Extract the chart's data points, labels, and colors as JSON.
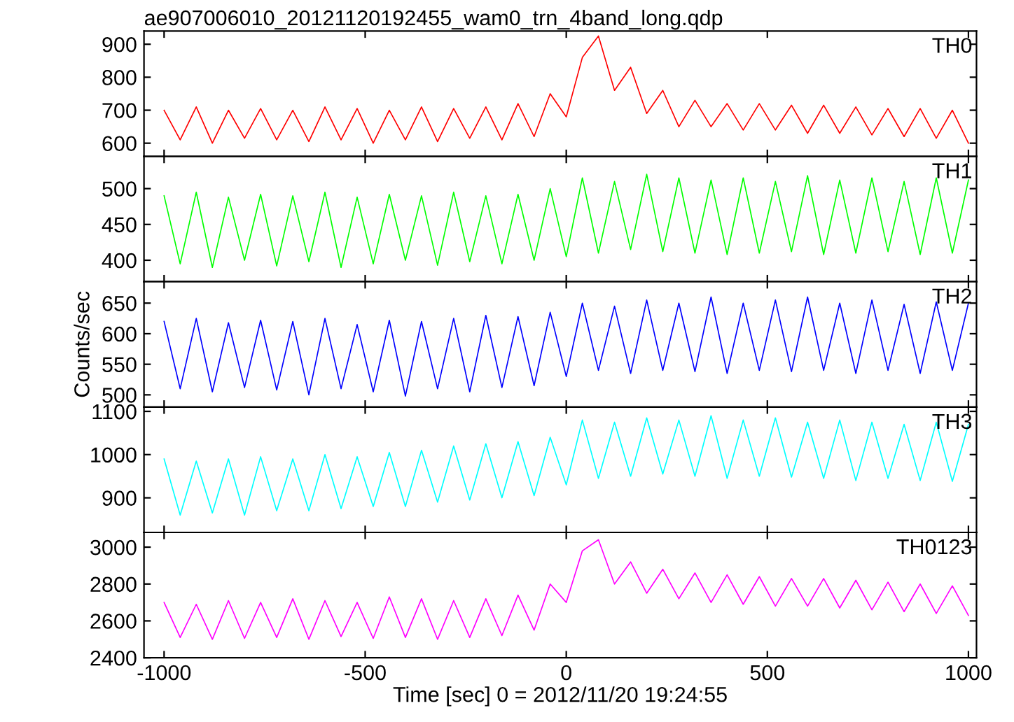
{
  "chart_data": [
    {
      "type": "line",
      "title": "ae907006010_20121120192455_wam0_trn_4band_long.qdp",
      "annotations": [
        "TH0"
      ],
      "tick_labels": "y",
      "xlim": [
        -1050,
        1020
      ],
      "xticks": [
        -1000,
        -500,
        0,
        500,
        1000
      ],
      "ylim": [
        560,
        940
      ],
      "yticks": [
        600,
        700,
        800,
        900
      ],
      "grid": false,
      "legend": false,
      "x": [
        -1000,
        -960,
        -920,
        -880,
        -840,
        -800,
        -760,
        -720,
        -680,
        -640,
        -600,
        -560,
        -520,
        -480,
        -440,
        -400,
        -360,
        -320,
        -280,
        -240,
        -200,
        -160,
        -120,
        -80,
        -40,
        0,
        40,
        80,
        120,
        160,
        200,
        240,
        280,
        320,
        360,
        400,
        440,
        480,
        520,
        560,
        600,
        640,
        680,
        720,
        760,
        800,
        840,
        880,
        920,
        960,
        1000
      ],
      "series": [
        {
          "color": "#ff0000",
          "values": [
            700,
            610,
            710,
            600,
            700,
            615,
            705,
            610,
            700,
            605,
            710,
            610,
            705,
            600,
            700,
            610,
            710,
            605,
            705,
            615,
            710,
            610,
            720,
            620,
            750,
            680,
            860,
            925,
            760,
            830,
            690,
            760,
            650,
            730,
            650,
            720,
            640,
            720,
            640,
            715,
            630,
            715,
            630,
            710,
            625,
            705,
            620,
            705,
            615,
            700,
            600
          ]
        }
      ]
    },
    {
      "type": "line",
      "annotations": [
        "TH1"
      ],
      "tick_labels": "y",
      "xlim": [
        -1050,
        1020
      ],
      "xticks": [
        -1000,
        -500,
        0,
        500,
        1000
      ],
      "ylim": [
        370,
        545
      ],
      "yticks": [
        400,
        450,
        500
      ],
      "grid": false,
      "legend": false,
      "x": [
        -1000,
        -960,
        -920,
        -880,
        -840,
        -800,
        -760,
        -720,
        -680,
        -640,
        -600,
        -560,
        -520,
        -480,
        -440,
        -400,
        -360,
        -320,
        -280,
        -240,
        -200,
        -160,
        -120,
        -80,
        -40,
        0,
        40,
        80,
        120,
        160,
        200,
        240,
        280,
        320,
        360,
        400,
        440,
        480,
        520,
        560,
        600,
        640,
        680,
        720,
        760,
        800,
        840,
        880,
        920,
        960,
        1000
      ],
      "series": [
        {
          "color": "#00ff00",
          "values": [
            490,
            395,
            495,
            390,
            488,
            400,
            492,
            392,
            490,
            398,
            495,
            390,
            488,
            395,
            492,
            400,
            490,
            393,
            495,
            398,
            490,
            395,
            492,
            400,
            500,
            405,
            515,
            410,
            510,
            415,
            520,
            412,
            515,
            410,
            512,
            408,
            515,
            410,
            510,
            412,
            518,
            408,
            512,
            410,
            515,
            412,
            510,
            408,
            515,
            410,
            512
          ]
        }
      ]
    },
    {
      "type": "line",
      "annotations": [
        "TH2"
      ],
      "ylabel": "Counts/sec",
      "tick_labels": "y",
      "xlim": [
        -1050,
        1020
      ],
      "xticks": [
        -1000,
        -500,
        0,
        500,
        1000
      ],
      "ylim": [
        480,
        685
      ],
      "yticks": [
        500,
        550,
        600,
        650
      ],
      "grid": false,
      "legend": false,
      "x": [
        -1000,
        -960,
        -920,
        -880,
        -840,
        -800,
        -760,
        -720,
        -680,
        -640,
        -600,
        -560,
        -520,
        -480,
        -440,
        -400,
        -360,
        -320,
        -280,
        -240,
        -200,
        -160,
        -120,
        -80,
        -40,
        0,
        40,
        80,
        120,
        160,
        200,
        240,
        280,
        320,
        360,
        400,
        440,
        480,
        520,
        560,
        600,
        640,
        680,
        720,
        760,
        800,
        840,
        880,
        920,
        960,
        1000
      ],
      "series": [
        {
          "color": "#0000ff",
          "values": [
            620,
            510,
            625,
            505,
            618,
            512,
            622,
            508,
            620,
            500,
            625,
            510,
            615,
            505,
            622,
            498,
            620,
            510,
            625,
            505,
            630,
            512,
            628,
            515,
            635,
            530,
            650,
            540,
            645,
            535,
            655,
            540,
            650,
            538,
            660,
            535,
            650,
            540,
            655,
            538,
            660,
            540,
            650,
            535,
            655,
            540,
            648,
            535,
            652,
            540,
            650
          ]
        }
      ]
    },
    {
      "type": "line",
      "annotations": [
        "TH3"
      ],
      "tick_labels": "y",
      "xlim": [
        -1050,
        1020
      ],
      "xticks": [
        -1000,
        -500,
        0,
        500,
        1000
      ],
      "ylim": [
        820,
        1110
      ],
      "yticks": [
        900,
        1000,
        1100
      ],
      "grid": false,
      "legend": false,
      "x": [
        -1000,
        -960,
        -920,
        -880,
        -840,
        -800,
        -760,
        -720,
        -680,
        -640,
        -600,
        -560,
        -520,
        -480,
        -440,
        -400,
        -360,
        -320,
        -280,
        -240,
        -200,
        -160,
        -120,
        -80,
        -40,
        0,
        40,
        80,
        120,
        160,
        200,
        240,
        280,
        320,
        360,
        400,
        440,
        480,
        520,
        560,
        600,
        640,
        680,
        720,
        760,
        800,
        840,
        880,
        920,
        960,
        1000
      ],
      "series": [
        {
          "color": "#00ffff",
          "values": [
            990,
            860,
            985,
            865,
            990,
            860,
            995,
            870,
            990,
            870,
            1000,
            875,
            995,
            880,
            1005,
            880,
            1010,
            890,
            1020,
            895,
            1025,
            900,
            1030,
            905,
            1040,
            930,
            1080,
            945,
            1075,
            950,
            1085,
            955,
            1080,
            950,
            1090,
            945,
            1080,
            950,
            1085,
            948,
            1075,
            945,
            1080,
            940,
            1075,
            945,
            1070,
            940,
            1075,
            938,
            1070
          ]
        }
      ]
    },
    {
      "type": "line",
      "annotations": [
        "TH0123"
      ],
      "xlabel": "Time [sec] 0 = 2012/11/20 19:24:55",
      "xlim": [
        -1050,
        1020
      ],
      "xticks": [
        -1000,
        -500,
        0,
        500,
        1000
      ],
      "ylim": [
        2400,
        3080
      ],
      "yticks": [
        2400,
        2600,
        2800,
        3000
      ],
      "grid": false,
      "legend": false,
      "x": [
        -1000,
        -960,
        -920,
        -880,
        -840,
        -800,
        -760,
        -720,
        -680,
        -640,
        -600,
        -560,
        -520,
        -480,
        -440,
        -400,
        -360,
        -320,
        -280,
        -240,
        -200,
        -160,
        -120,
        -80,
        -40,
        0,
        40,
        80,
        120,
        160,
        200,
        240,
        280,
        320,
        360,
        400,
        440,
        480,
        520,
        560,
        600,
        640,
        680,
        720,
        760,
        800,
        840,
        880,
        920,
        960,
        1000
      ],
      "series": [
        {
          "color": "#ff00ff",
          "values": [
            2700,
            2510,
            2690,
            2500,
            2710,
            2505,
            2700,
            2510,
            2720,
            2500,
            2710,
            2515,
            2700,
            2505,
            2730,
            2510,
            2720,
            2500,
            2710,
            2510,
            2720,
            2520,
            2740,
            2550,
            2800,
            2700,
            2980,
            3040,
            2800,
            2920,
            2750,
            2880,
            2720,
            2860,
            2700,
            2850,
            2690,
            2840,
            2680,
            2830,
            2680,
            2830,
            2670,
            2820,
            2660,
            2810,
            2650,
            2800,
            2640,
            2790,
            2630
          ]
        }
      ]
    }
  ]
}
